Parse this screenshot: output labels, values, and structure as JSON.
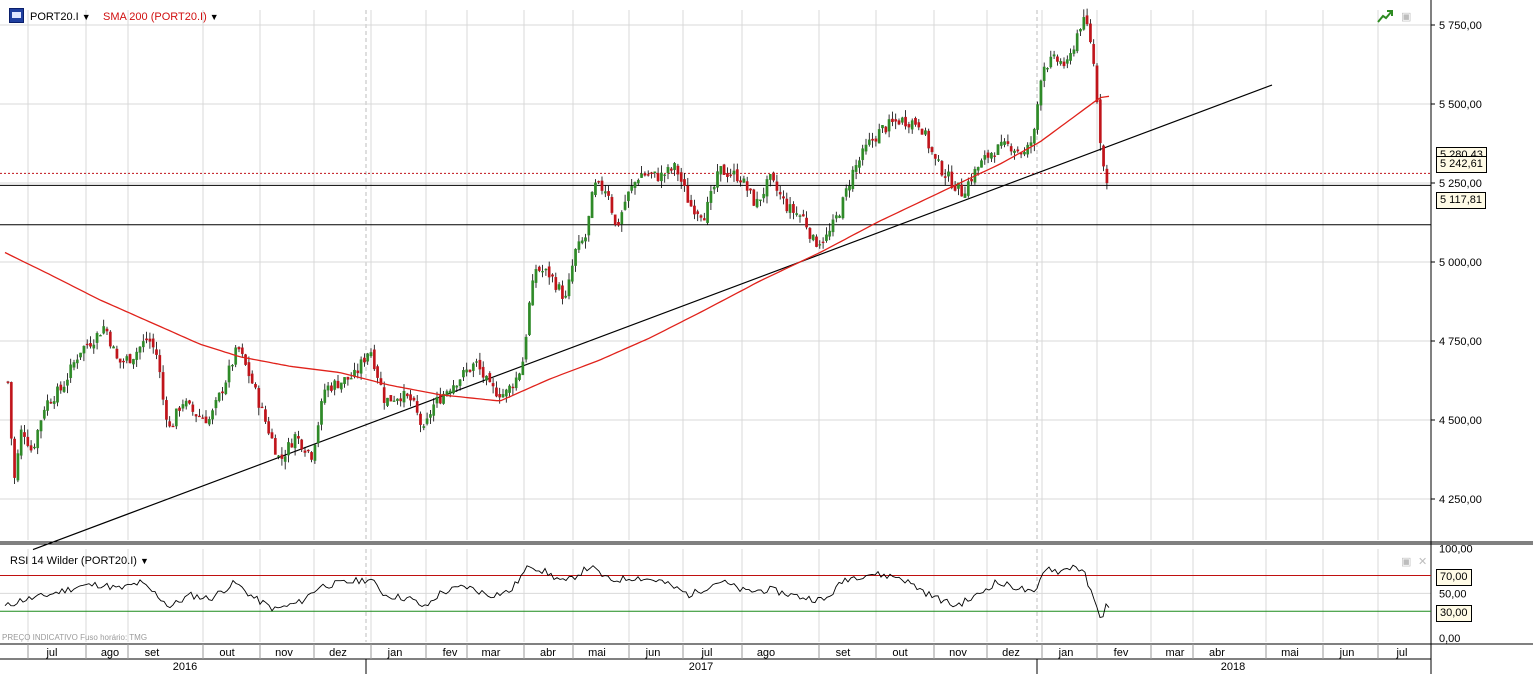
{
  "header": {
    "symbol": "PORT20.I",
    "sma_label": "SMA 200 (PORT20.I)",
    "rsi_label": "RSI 14 Wilder (PORT20.I)",
    "footnote": "PREÇO INDICATIVO   Fuso horário: TMG"
  },
  "icons": {
    "app": "app-logo-icon",
    "dropdown": "chevron-down-icon",
    "trendline": "trendline-tool-icon",
    "restore": "restore-icon",
    "close": "close-icon"
  },
  "colors": {
    "sma": "#e0221b",
    "up": "#2f8a28",
    "down": "#c0141b",
    "rsi_upper": "#c01010",
    "rsi_lower": "#1b8c1b",
    "grid": "#d9d9d9"
  },
  "chart_data": {
    "type": "candlestick",
    "symbol": "PORT20.I",
    "x_months": [
      "jul",
      "ago",
      "set",
      "out",
      "nov",
      "dez",
      "jan",
      "fev",
      "mar",
      "abr",
      "mai",
      "jun",
      "jul",
      "ago",
      "set",
      "out",
      "nov",
      "dez",
      "jan",
      "fev",
      "mar",
      "abr",
      "mai",
      "jun",
      "jul"
    ],
    "x_years": [
      "2016",
      "2017",
      "2018"
    ],
    "y_ticks": [
      "5 750,00",
      "5 500,00",
      "5 250,00",
      "5 000,00",
      "4 750,00",
      "4 500,00",
      "4 250,00"
    ],
    "ylim": [
      4060,
      5810
    ],
    "close_anchors": [
      {
        "x": 8,
        "y": 4620
      },
      {
        "x": 14,
        "y": 4300
      },
      {
        "x": 22,
        "y": 4480
      },
      {
        "x": 32,
        "y": 4400
      },
      {
        "x": 45,
        "y": 4550
      },
      {
        "x": 62,
        "y": 4600
      },
      {
        "x": 80,
        "y": 4720
      },
      {
        "x": 95,
        "y": 4760
      },
      {
        "x": 105,
        "y": 4800
      },
      {
        "x": 118,
        "y": 4680
      },
      {
        "x": 132,
        "y": 4700
      },
      {
        "x": 148,
        "y": 4760
      },
      {
        "x": 158,
        "y": 4700
      },
      {
        "x": 162,
        "y": 4580
      },
      {
        "x": 170,
        "y": 4470
      },
      {
        "x": 182,
        "y": 4560
      },
      {
        "x": 195,
        "y": 4520
      },
      {
        "x": 210,
        "y": 4500
      },
      {
        "x": 225,
        "y": 4620
      },
      {
        "x": 238,
        "y": 4730
      },
      {
        "x": 252,
        "y": 4620
      },
      {
        "x": 265,
        "y": 4500
      },
      {
        "x": 280,
        "y": 4370
      },
      {
        "x": 295,
        "y": 4450
      },
      {
        "x": 312,
        "y": 4390
      },
      {
        "x": 325,
        "y": 4600
      },
      {
        "x": 340,
        "y": 4620
      },
      {
        "x": 355,
        "y": 4640
      },
      {
        "x": 370,
        "y": 4730
      },
      {
        "x": 385,
        "y": 4560
      },
      {
        "x": 400,
        "y": 4580
      },
      {
        "x": 412,
        "y": 4560
      },
      {
        "x": 424,
        "y": 4460
      },
      {
        "x": 432,
        "y": 4540
      },
      {
        "x": 448,
        "y": 4600
      },
      {
        "x": 462,
        "y": 4640
      },
      {
        "x": 476,
        "y": 4680
      },
      {
        "x": 490,
        "y": 4600
      },
      {
        "x": 505,
        "y": 4580
      },
      {
        "x": 518,
        "y": 4640
      },
      {
        "x": 524,
        "y": 4700
      },
      {
        "x": 528,
        "y": 4840
      },
      {
        "x": 536,
        "y": 4980
      },
      {
        "x": 550,
        "y": 4960
      },
      {
        "x": 566,
        "y": 4880
      },
      {
        "x": 575,
        "y": 5030
      },
      {
        "x": 586,
        "y": 5080
      },
      {
        "x": 594,
        "y": 5240
      },
      {
        "x": 608,
        "y": 5230
      },
      {
        "x": 616,
        "y": 5100
      },
      {
        "x": 626,
        "y": 5200
      },
      {
        "x": 640,
        "y": 5280
      },
      {
        "x": 660,
        "y": 5270
      },
      {
        "x": 676,
        "y": 5300
      },
      {
        "x": 690,
        "y": 5180
      },
      {
        "x": 705,
        "y": 5150
      },
      {
        "x": 720,
        "y": 5290
      },
      {
        "x": 740,
        "y": 5270
      },
      {
        "x": 756,
        "y": 5180
      },
      {
        "x": 770,
        "y": 5260
      },
      {
        "x": 788,
        "y": 5170
      },
      {
        "x": 804,
        "y": 5140
      },
      {
        "x": 814,
        "y": 5060
      },
      {
        "x": 828,
        "y": 5080
      },
      {
        "x": 842,
        "y": 5180
      },
      {
        "x": 852,
        "y": 5280
      },
      {
        "x": 868,
        "y": 5370
      },
      {
        "x": 882,
        "y": 5420
      },
      {
        "x": 900,
        "y": 5450
      },
      {
        "x": 920,
        "y": 5440
      },
      {
        "x": 935,
        "y": 5320
      },
      {
        "x": 950,
        "y": 5260
      },
      {
        "x": 962,
        "y": 5220
      },
      {
        "x": 978,
        "y": 5300
      },
      {
        "x": 992,
        "y": 5350
      },
      {
        "x": 1010,
        "y": 5370
      },
      {
        "x": 1025,
        "y": 5340
      },
      {
        "x": 1034,
        "y": 5400
      },
      {
        "x": 1042,
        "y": 5620
      },
      {
        "x": 1056,
        "y": 5640
      },
      {
        "x": 1068,
        "y": 5620
      },
      {
        "x": 1075,
        "y": 5700
      },
      {
        "x": 1080,
        "y": 5750
      },
      {
        "x": 1086,
        "y": 5760
      },
      {
        "x": 1092,
        "y": 5680
      },
      {
        "x": 1097,
        "y": 5520
      },
      {
        "x": 1100,
        "y": 5400
      },
      {
        "x": 1104,
        "y": 5290
      },
      {
        "x": 1106,
        "y": 5240
      },
      {
        "x": 1110,
        "y": 5270
      }
    ],
    "sma200": [
      {
        "x": 5,
        "y": 5030
      },
      {
        "x": 50,
        "y": 4960
      },
      {
        "x": 100,
        "y": 4880
      },
      {
        "x": 150,
        "y": 4810
      },
      {
        "x": 200,
        "y": 4740
      },
      {
        "x": 240,
        "y": 4700
      },
      {
        "x": 290,
        "y": 4670
      },
      {
        "x": 340,
        "y": 4650
      },
      {
        "x": 390,
        "y": 4610
      },
      {
        "x": 440,
        "y": 4580
      },
      {
        "x": 500,
        "y": 4560
      },
      {
        "x": 550,
        "y": 4630
      },
      {
        "x": 600,
        "y": 4690
      },
      {
        "x": 650,
        "y": 4760
      },
      {
        "x": 700,
        "y": 4840
      },
      {
        "x": 760,
        "y": 4940
      },
      {
        "x": 820,
        "y": 5030
      },
      {
        "x": 880,
        "y": 5130
      },
      {
        "x": 940,
        "y": 5220
      },
      {
        "x": 1000,
        "y": 5310
      },
      {
        "x": 1040,
        "y": 5380
      },
      {
        "x": 1070,
        "y": 5450
      },
      {
        "x": 1100,
        "y": 5520
      },
      {
        "x": 1110,
        "y": 5525
      }
    ],
    "trendline": {
      "x1": 33,
      "y1": 4090,
      "x2": 1272,
      "y2": 5560
    },
    "price_lines": [
      {
        "label": "5 280,43",
        "value": 5280.43,
        "style": "dotted",
        "color": "#c0141b"
      },
      {
        "label": "5 242,61",
        "value": 5242.61,
        "style": "solid",
        "color": "#000000"
      },
      {
        "label": "5 117,81",
        "value": 5117.81,
        "style": "solid",
        "color": "#000000"
      }
    ],
    "rsi": {
      "levels": [
        {
          "label": "70,00",
          "value": 70,
          "color": "#c01010"
        },
        {
          "label": "30,00",
          "value": 30,
          "color": "#1b8c1b"
        }
      ],
      "y_ticks": [
        "100,00",
        "50,00",
        "30,00",
        "0,00"
      ],
      "ylim": [
        0,
        100
      ],
      "anchors": [
        {
          "x": 5,
          "y": 35
        },
        {
          "x": 20,
          "y": 42
        },
        {
          "x": 40,
          "y": 46
        },
        {
          "x": 60,
          "y": 52
        },
        {
          "x": 80,
          "y": 58
        },
        {
          "x": 100,
          "y": 60
        },
        {
          "x": 120,
          "y": 55
        },
        {
          "x": 140,
          "y": 62
        },
        {
          "x": 155,
          "y": 50
        },
        {
          "x": 170,
          "y": 35
        },
        {
          "x": 190,
          "y": 48
        },
        {
          "x": 210,
          "y": 44
        },
        {
          "x": 235,
          "y": 62
        },
        {
          "x": 255,
          "y": 44
        },
        {
          "x": 275,
          "y": 32
        },
        {
          "x": 300,
          "y": 40
        },
        {
          "x": 320,
          "y": 58
        },
        {
          "x": 345,
          "y": 62
        },
        {
          "x": 370,
          "y": 66
        },
        {
          "x": 385,
          "y": 48
        },
        {
          "x": 410,
          "y": 44
        },
        {
          "x": 425,
          "y": 34
        },
        {
          "x": 440,
          "y": 50
        },
        {
          "x": 465,
          "y": 58
        },
        {
          "x": 490,
          "y": 48
        },
        {
          "x": 510,
          "y": 52
        },
        {
          "x": 530,
          "y": 82
        },
        {
          "x": 545,
          "y": 74
        },
        {
          "x": 565,
          "y": 62
        },
        {
          "x": 590,
          "y": 80
        },
        {
          "x": 610,
          "y": 64
        },
        {
          "x": 635,
          "y": 68
        },
        {
          "x": 660,
          "y": 64
        },
        {
          "x": 690,
          "y": 48
        },
        {
          "x": 720,
          "y": 64
        },
        {
          "x": 745,
          "y": 52
        },
        {
          "x": 770,
          "y": 54
        },
        {
          "x": 800,
          "y": 46
        },
        {
          "x": 825,
          "y": 42
        },
        {
          "x": 845,
          "y": 66
        },
        {
          "x": 870,
          "y": 72
        },
        {
          "x": 900,
          "y": 68
        },
        {
          "x": 930,
          "y": 48
        },
        {
          "x": 955,
          "y": 36
        },
        {
          "x": 975,
          "y": 46
        },
        {
          "x": 995,
          "y": 62
        },
        {
          "x": 1020,
          "y": 56
        },
        {
          "x": 1035,
          "y": 48
        },
        {
          "x": 1045,
          "y": 80
        },
        {
          "x": 1060,
          "y": 74
        },
        {
          "x": 1075,
          "y": 82
        },
        {
          "x": 1085,
          "y": 70
        },
        {
          "x": 1095,
          "y": 38
        },
        {
          "x": 1102,
          "y": 22
        },
        {
          "x": 1106,
          "y": 36
        },
        {
          "x": 1110,
          "y": 30
        }
      ]
    }
  }
}
